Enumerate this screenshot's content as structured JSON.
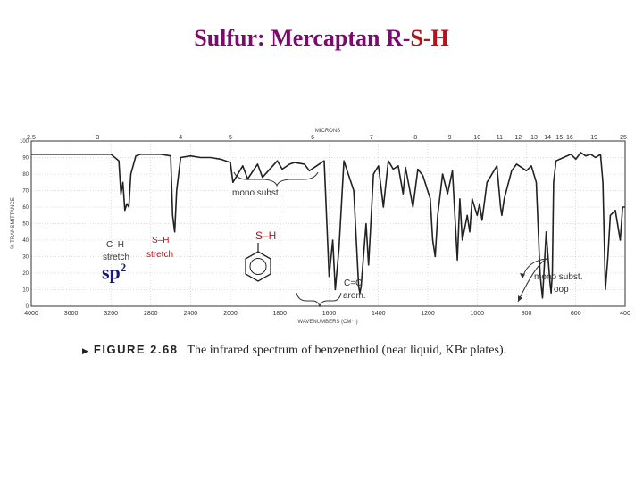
{
  "slide": {
    "title_part1": "Sulfur: Mercaptan R-",
    "title_part2": "S-H",
    "title_color": "#7a0a6e",
    "accent_color": "#b5121b"
  },
  "figure": {
    "caption_label": "FIGURE 2.68",
    "caption_text": "The infrared spectrum of benzenethiol (neat liquid, KBr plates).",
    "sp2_base": "sp",
    "sp2_sup": "2"
  },
  "chart_data": {
    "type": "line",
    "title": "",
    "xlabel": "WAVENUMBERS (CM⁻¹)",
    "ylabel": "% TRANSMITTANCE",
    "top_axis_label": "MICRONS",
    "xlim": [
      4000,
      400
    ],
    "ylim": [
      0,
      100
    ],
    "x_ticks": [
      "4000",
      "3600",
      "3200",
      "2800",
      "2400",
      "2000",
      "1800",
      "1600",
      "1400",
      "1200",
      "1000",
      "800",
      "600",
      "400"
    ],
    "y_ticks": [
      "0",
      "10",
      "20",
      "30",
      "40",
      "50",
      "60",
      "70",
      "80",
      "90",
      "100"
    ],
    "micron_ticks": [
      "2.5",
      "3",
      "4",
      "5",
      "6",
      "7",
      "8",
      "9",
      "10",
      "11",
      "12",
      "13",
      "14",
      "15",
      "16",
      "19",
      "25"
    ],
    "grid": true,
    "series": [
      {
        "x": [
          4000,
          3700,
          3400,
          3200,
          3120,
          3100,
          3080,
          3060,
          3040,
          3020,
          3000,
          2950,
          2900,
          2800,
          2700,
          2600,
          2580,
          2570,
          2560,
          2540,
          2500,
          2400,
          2300,
          2200,
          2100,
          2000,
          1990,
          1950,
          1930,
          1890,
          1870,
          1810,
          1790,
          1760,
          1740,
          1700,
          1680,
          1620,
          1600,
          1585,
          1575,
          1560,
          1540,
          1500,
          1480,
          1475,
          1470,
          1450,
          1440,
          1420,
          1400,
          1380,
          1360,
          1340,
          1320,
          1300,
          1290,
          1260,
          1240,
          1220,
          1190,
          1180,
          1170,
          1160,
          1140,
          1120,
          1100,
          1080,
          1070,
          1060,
          1040,
          1030,
          1020,
          1000,
          990,
          980,
          960,
          920,
          905,
          900,
          890,
          860,
          840,
          820,
          800,
          780,
          760,
          745,
          740,
          735,
          720,
          705,
          700,
          695,
          690,
          680,
          650,
          620,
          600,
          580,
          560,
          540,
          520,
          500,
          490,
          480,
          470,
          460,
          440,
          420,
          410,
          400
        ],
        "y": [
          92,
          92,
          92,
          92,
          88,
          68,
          75,
          58,
          62,
          60,
          80,
          91,
          92,
          92,
          92,
          91,
          55,
          50,
          45,
          70,
          90,
          91,
          90,
          90,
          89,
          87,
          75,
          85,
          77,
          86,
          78,
          88,
          83,
          86,
          87,
          86,
          82,
          88,
          18,
          40,
          10,
          35,
          88,
          70,
          12,
          8,
          12,
          50,
          25,
          80,
          85,
          60,
          88,
          83,
          85,
          68,
          84,
          60,
          83,
          79,
          65,
          40,
          30,
          55,
          80,
          68,
          82,
          28,
          65,
          40,
          55,
          45,
          65,
          55,
          62,
          52,
          75,
          85,
          60,
          55,
          65,
          82,
          86,
          84,
          82,
          85,
          75,
          20,
          12,
          5,
          45,
          15,
          8,
          20,
          75,
          88,
          90,
          92,
          89,
          93,
          91,
          92,
          90,
          92,
          75,
          10,
          30,
          55,
          58,
          40,
          60,
          60
        ]
      }
    ]
  },
  "annotations": {
    "ch_stretch_1": "C–H",
    "ch_stretch_2": "stretch",
    "sh_stretch_1": "S–H",
    "sh_stretch_2": "stretch",
    "sh_structure": "S–H",
    "mono_subst_top": "mono subst.",
    "cc_arom_1": "C=C",
    "cc_arom_2": "arom.",
    "mono_oop_1": "mono subst.",
    "mono_oop_2": "oop"
  }
}
